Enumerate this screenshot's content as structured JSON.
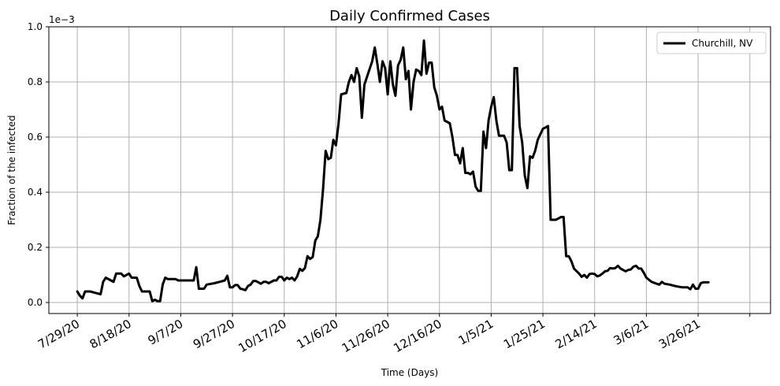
{
  "chart_data": {
    "type": "line",
    "title": "Daily Confirmed Cases",
    "xlabel": "Time (Days)",
    "ylabel": "Fraction of the infected",
    "y_scale_label": "1e−3",
    "ylim": [
      -4e-05,
      0.001
    ],
    "yticks": [
      0.0,
      0.0002,
      0.0004,
      0.0006,
      0.0008,
      0.001
    ],
    "ytick_labels": [
      "0.0",
      "0.2",
      "0.4",
      "0.6",
      "0.8",
      "1.0"
    ],
    "xlim": [
      "2020-07-18",
      "2021-04-23"
    ],
    "xticks": [
      "2020-07-29",
      "2020-08-18",
      "2020-09-07",
      "2020-09-27",
      "2020-10-17",
      "2020-11-06",
      "2020-11-26",
      "2020-12-16",
      "2021-01-05",
      "2021-01-25",
      "2021-02-14",
      "2021-03-06",
      "2021-03-26",
      "2021-04-15"
    ],
    "xtick_labels": [
      "7/29/20",
      "8/18/20",
      "9/7/20",
      "9/27/20",
      "10/17/20",
      "11/6/20",
      "11/26/20",
      "12/16/20",
      "1/5/21",
      "1/25/21",
      "2/14/21",
      "3/6/21",
      "3/26/21",
      ""
    ],
    "grid": true,
    "legend_position": "top-right",
    "series": [
      {
        "name": "Churchill, NV",
        "color": "#000000",
        "points": [
          [
            "2020-07-29",
            4e-05
          ],
          [
            "2020-07-30",
            2.5e-05
          ],
          [
            "2020-07-31",
            1.5e-05
          ],
          [
            "2020-08-01",
            4e-05
          ],
          [
            "2020-08-03",
            4e-05
          ],
          [
            "2020-08-05",
            3.5e-05
          ],
          [
            "2020-08-07",
            3e-05
          ],
          [
            "2020-08-08",
            7.5e-05
          ],
          [
            "2020-08-09",
            9e-05
          ],
          [
            "2020-08-11",
            8e-05
          ],
          [
            "2020-08-12",
            7.5e-05
          ],
          [
            "2020-08-13",
            0.000105
          ],
          [
            "2020-08-15",
            0.000105
          ],
          [
            "2020-08-16",
            9.5e-05
          ],
          [
            "2020-08-18",
            0.000105
          ],
          [
            "2020-08-19",
            9e-05
          ],
          [
            "2020-08-21",
            9e-05
          ],
          [
            "2020-08-22",
            6e-05
          ],
          [
            "2020-08-23",
            4e-05
          ],
          [
            "2020-08-26",
            4e-05
          ],
          [
            "2020-08-27",
            5e-06
          ],
          [
            "2020-08-28",
            1e-05
          ],
          [
            "2020-08-29",
            5e-06
          ],
          [
            "2020-08-30",
            5e-06
          ],
          [
            "2020-08-31",
            6.5e-05
          ],
          [
            "2020-09-01",
            9e-05
          ],
          [
            "2020-09-02",
            8.5e-05
          ],
          [
            "2020-09-04",
            8.5e-05
          ],
          [
            "2020-09-05",
            8.5e-05
          ],
          [
            "2020-09-06",
            8e-05
          ],
          [
            "2020-09-10",
            8e-05
          ],
          [
            "2020-09-11",
            8e-05
          ],
          [
            "2020-09-12",
            8e-05
          ],
          [
            "2020-09-13",
            0.000128
          ],
          [
            "2020-09-14",
            5e-05
          ],
          [
            "2020-09-16",
            5e-05
          ],
          [
            "2020-09-17",
            6.5e-05
          ],
          [
            "2020-09-20",
            7e-05
          ],
          [
            "2020-09-22",
            7.5e-05
          ],
          [
            "2020-09-24",
            8e-05
          ],
          [
            "2020-09-25",
            9.7e-05
          ],
          [
            "2020-09-26",
            5.5e-05
          ],
          [
            "2020-09-27",
            5.5e-05
          ],
          [
            "2020-09-28",
            6.3e-05
          ],
          [
            "2020-09-29",
            6.3e-05
          ],
          [
            "2020-09-30",
            5e-05
          ],
          [
            "2020-10-01",
            4.8e-05
          ],
          [
            "2020-10-02",
            4.5e-05
          ],
          [
            "2020-10-03",
            6e-05
          ],
          [
            "2020-10-04",
            6.5e-05
          ],
          [
            "2020-10-05",
            7.8e-05
          ],
          [
            "2020-10-06",
            7.8e-05
          ],
          [
            "2020-10-08",
            6.8e-05
          ],
          [
            "2020-10-09",
            7.5e-05
          ],
          [
            "2020-10-10",
            7.5e-05
          ],
          [
            "2020-10-11",
            7e-05
          ],
          [
            "2020-10-13",
            8e-05
          ],
          [
            "2020-10-14",
            8e-05
          ],
          [
            "2020-10-15",
            9.3e-05
          ],
          [
            "2020-10-16",
            9.3e-05
          ],
          [
            "2020-10-17",
            8e-05
          ],
          [
            "2020-10-18",
            9e-05
          ],
          [
            "2020-10-19",
            8.5e-05
          ],
          [
            "2020-10-20",
            9e-05
          ],
          [
            "2020-10-21",
            8e-05
          ],
          [
            "2020-10-22",
            9.5e-05
          ],
          [
            "2020-10-23",
            0.000122
          ],
          [
            "2020-10-24",
            0.000115
          ],
          [
            "2020-10-25",
            0.000125
          ],
          [
            "2020-10-26",
            0.000168
          ],
          [
            "2020-10-27",
            0.000158
          ],
          [
            "2020-10-28",
            0.000165
          ],
          [
            "2020-10-29",
            0.000225
          ],
          [
            "2020-10-30",
            0.00024
          ],
          [
            "2020-10-31",
            0.0003
          ],
          [
            "2020-11-01",
            0.00041
          ],
          [
            "2020-11-02",
            0.00055
          ],
          [
            "2020-11-03",
            0.00052
          ],
          [
            "2020-11-04",
            0.000525
          ],
          [
            "2020-11-05",
            0.00059
          ],
          [
            "2020-11-06",
            0.00057
          ],
          [
            "2020-11-07",
            0.00065
          ],
          [
            "2020-11-08",
            0.000755
          ],
          [
            "2020-11-10",
            0.00076
          ],
          [
            "2020-11-11",
            0.0008
          ],
          [
            "2020-11-12",
            0.000825
          ],
          [
            "2020-11-13",
            0.0008
          ],
          [
            "2020-11-14",
            0.00085
          ],
          [
            "2020-11-15",
            0.00082
          ],
          [
            "2020-11-16",
            0.00067
          ],
          [
            "2020-11-17",
            0.00079
          ],
          [
            "2020-11-20",
            0.000875
          ],
          [
            "2020-11-21",
            0.000925
          ],
          [
            "2020-11-22",
            0.000865
          ],
          [
            "2020-11-23",
            0.0008
          ],
          [
            "2020-11-24",
            0.000875
          ],
          [
            "2020-11-25",
            0.00085
          ],
          [
            "2020-11-26",
            0.000755
          ],
          [
            "2020-11-27",
            0.000875
          ],
          [
            "2020-11-28",
            0.00079
          ],
          [
            "2020-11-29",
            0.00075
          ],
          [
            "2020-11-30",
            0.00086
          ],
          [
            "2020-12-01",
            0.00088
          ],
          [
            "2020-12-02",
            0.000925
          ],
          [
            "2020-12-03",
            0.00081
          ],
          [
            "2020-12-04",
            0.00084
          ],
          [
            "2020-12-05",
            0.0007
          ],
          [
            "2020-12-06",
            0.0008
          ],
          [
            "2020-12-07",
            0.000845
          ],
          [
            "2020-12-08",
            0.00084
          ],
          [
            "2020-12-09",
            0.000825
          ],
          [
            "2020-12-10",
            0.00095
          ],
          [
            "2020-12-11",
            0.00083
          ],
          [
            "2020-12-12",
            0.00087
          ],
          [
            "2020-12-13",
            0.00087
          ],
          [
            "2020-12-14",
            0.00078
          ],
          [
            "2020-12-15",
            0.00075
          ],
          [
            "2020-12-16",
            0.0007
          ],
          [
            "2020-12-17",
            0.00071
          ],
          [
            "2020-12-18",
            0.00066
          ],
          [
            "2020-12-20",
            0.00065
          ],
          [
            "2020-12-21",
            0.0006
          ],
          [
            "2020-12-22",
            0.000535
          ],
          [
            "2020-12-23",
            0.000535
          ],
          [
            "2020-12-24",
            0.000505
          ],
          [
            "2020-12-25",
            0.00056
          ],
          [
            "2020-12-26",
            0.00047
          ],
          [
            "2020-12-27",
            0.00047
          ],
          [
            "2020-12-28",
            0.000465
          ],
          [
            "2020-12-29",
            0.000475
          ],
          [
            "2020-12-30",
            0.00042
          ],
          [
            "2020-12-31",
            0.000405
          ],
          [
            "2021-01-01",
            0.000405
          ],
          [
            "2021-01-02",
            0.00062
          ],
          [
            "2021-01-03",
            0.00056
          ],
          [
            "2021-01-04",
            0.00066
          ],
          [
            "2021-01-05",
            0.00071
          ],
          [
            "2021-01-06",
            0.000745
          ],
          [
            "2021-01-07",
            0.00066
          ],
          [
            "2021-01-08",
            0.000605
          ],
          [
            "2021-01-10",
            0.000605
          ],
          [
            "2021-01-11",
            0.00058
          ],
          [
            "2021-01-12",
            0.00048
          ],
          [
            "2021-01-13",
            0.00048
          ],
          [
            "2021-01-14",
            0.00085
          ],
          [
            "2021-01-15",
            0.00085
          ],
          [
            "2021-01-16",
            0.00064
          ],
          [
            "2021-01-17",
            0.00058
          ],
          [
            "2021-01-18",
            0.00046
          ],
          [
            "2021-01-19",
            0.000415
          ],
          [
            "2021-01-20",
            0.00053
          ],
          [
            "2021-01-21",
            0.000525
          ],
          [
            "2021-01-22",
            0.00055
          ],
          [
            "2021-01-23",
            0.00059
          ],
          [
            "2021-01-25",
            0.00063
          ],
          [
            "2021-01-26",
            0.000635
          ],
          [
            "2021-01-27",
            0.00064
          ],
          [
            "2021-01-28",
            0.0003
          ],
          [
            "2021-01-30",
            0.0003
          ],
          [
            "2021-01-31",
            0.000305
          ],
          [
            "2021-02-01",
            0.00031
          ],
          [
            "2021-02-02",
            0.00031
          ],
          [
            "2021-02-03",
            0.000168
          ],
          [
            "2021-02-04",
            0.000168
          ],
          [
            "2021-02-05",
            0.00015
          ],
          [
            "2021-02-06",
            0.000123
          ],
          [
            "2021-02-08",
            0.000105
          ],
          [
            "2021-02-09",
            9.3e-05
          ],
          [
            "2021-02-10",
            0.0001
          ],
          [
            "2021-02-11",
            9e-05
          ],
          [
            "2021-02-12",
            0.000103
          ],
          [
            "2021-02-13",
            0.000105
          ],
          [
            "2021-02-14",
            0.000103
          ],
          [
            "2021-02-15",
            9.5e-05
          ],
          [
            "2021-02-16",
            9.8e-05
          ],
          [
            "2021-02-17",
            0.000105
          ],
          [
            "2021-02-18",
            0.000113
          ],
          [
            "2021-02-19",
            0.000115
          ],
          [
            "2021-02-20",
            0.000125
          ],
          [
            "2021-02-21",
            0.000123
          ],
          [
            "2021-02-22",
            0.000125
          ],
          [
            "2021-02-23",
            0.000133
          ],
          [
            "2021-02-24",
            0.000123
          ],
          [
            "2021-02-25",
            0.000118
          ],
          [
            "2021-02-26",
            0.000113
          ],
          [
            "2021-02-27",
            0.000118
          ],
          [
            "2021-02-28",
            0.00012
          ],
          [
            "2021-03-01",
            0.00013
          ],
          [
            "2021-03-02",
            0.000133
          ],
          [
            "2021-03-03",
            0.000123
          ],
          [
            "2021-03-04",
            0.000123
          ],
          [
            "2021-03-05",
            0.000108
          ],
          [
            "2021-03-06",
            9e-05
          ],
          [
            "2021-03-08",
            7.5e-05
          ],
          [
            "2021-03-10",
            6.8e-05
          ],
          [
            "2021-03-11",
            6.5e-05
          ],
          [
            "2021-03-12",
            7.5e-05
          ],
          [
            "2021-03-13",
            6.8e-05
          ],
          [
            "2021-03-15",
            6.5e-05
          ],
          [
            "2021-03-17",
            6e-05
          ],
          [
            "2021-03-18",
            5.8e-05
          ],
          [
            "2021-03-20",
            5.5e-05
          ],
          [
            "2021-03-22",
            5.5e-05
          ],
          [
            "2021-03-23",
            4.8e-05
          ],
          [
            "2021-03-24",
            6.5e-05
          ],
          [
            "2021-03-25",
            5e-05
          ],
          [
            "2021-03-26",
            5e-05
          ],
          [
            "2021-03-27",
            7e-05
          ],
          [
            "2021-03-28",
            7.3e-05
          ],
          [
            "2021-03-30",
            7.3e-05
          ]
        ]
      }
    ]
  }
}
